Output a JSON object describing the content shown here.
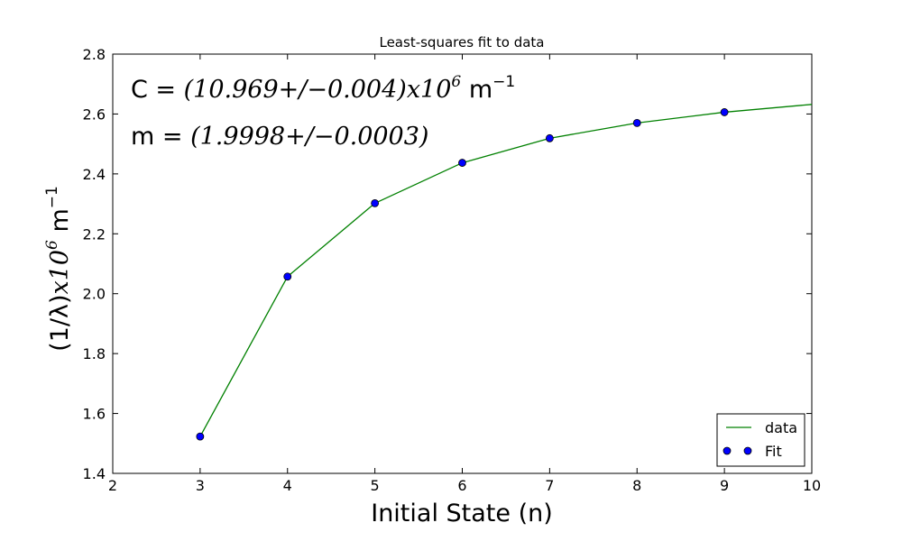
{
  "chart_data": {
    "type": "line",
    "title": "Least-squares fit to data",
    "xlabel": "Initial State (n)",
    "ylabel": {
      "prefix": "(1/λ)",
      "expr": "x10",
      "exponent": "6",
      "unit": " m",
      "unit_exponent": "−1"
    },
    "xlim": [
      2,
      10
    ],
    "ylim": [
      1.4,
      2.8
    ],
    "xticks": [
      "2",
      "3",
      "4",
      "5",
      "6",
      "7",
      "8",
      "9",
      "10"
    ],
    "yticks": [
      "1.4",
      "1.6",
      "1.8",
      "2.0",
      "2.2",
      "2.4",
      "2.6",
      "2.8"
    ],
    "grid": false,
    "legend_position": "bottom-right",
    "series": [
      {
        "name": "data",
        "style": "line",
        "color": "#008000",
        "x": [
          3,
          4,
          5,
          6,
          7,
          8,
          9,
          10
        ],
        "y": [
          1.523,
          2.057,
          2.302,
          2.437,
          2.519,
          2.57,
          2.606,
          2.632
        ]
      },
      {
        "name": "Fit",
        "style": "marker",
        "color": "#0000ff",
        "x": [
          3,
          4,
          5,
          6,
          7,
          8,
          9
        ],
        "y": [
          1.523,
          2.057,
          2.302,
          2.437,
          2.519,
          2.57,
          2.606
        ]
      }
    ],
    "annotations": [
      {
        "label": "C = ",
        "math": "(10.969+/−0.004)x10",
        "exponent": "6",
        "unit": " m",
        "unit_exponent": "−1"
      },
      {
        "label": "m = ",
        "math": "(1.9998+/−0.0003)",
        "exponent": "",
        "unit": "",
        "unit_exponent": ""
      }
    ]
  }
}
